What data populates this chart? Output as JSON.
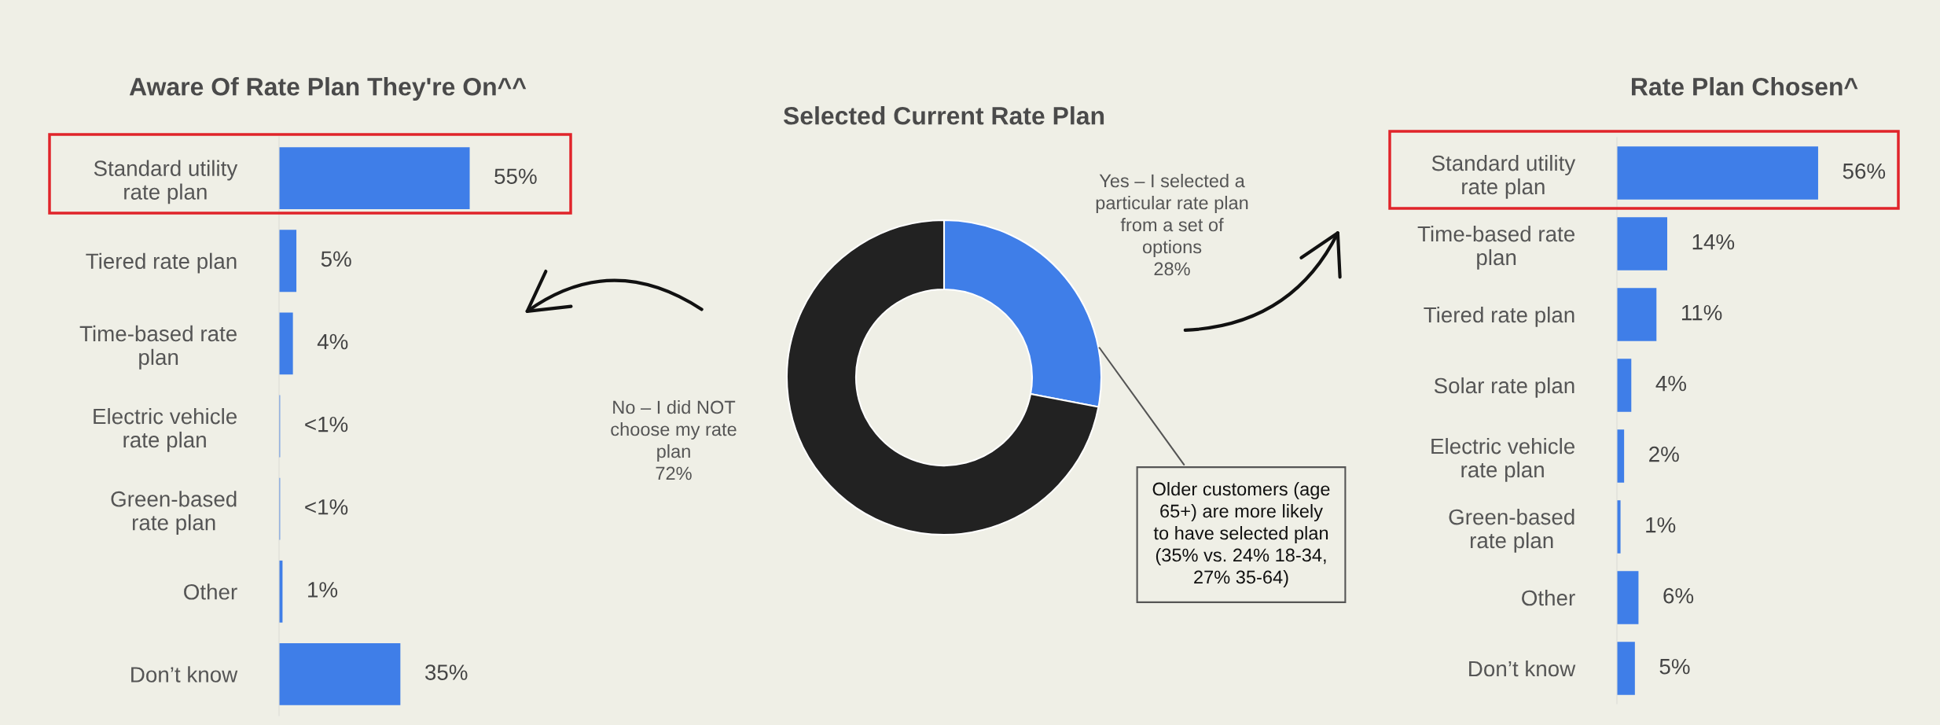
{
  "chart_data": [
    {
      "type": "bar",
      "orientation": "horizontal",
      "title": "Aware Of Rate Plan They're On^^",
      "categories": [
        "Standard utility\nrate plan",
        "Tiered rate plan",
        "Time-based rate\nplan",
        "Electric vehicle\nrate plan",
        "Green-based\nrate plan",
        "Other",
        "Don’t know"
      ],
      "values": [
        55,
        5,
        4,
        0.3,
        0.3,
        1,
        35
      ],
      "value_labels": [
        "55%",
        "5%",
        "4%",
        "<1%",
        "<1%",
        "1%",
        "35%"
      ],
      "color": "#3f7ee8",
      "grid": false,
      "legend": false
    },
    {
      "type": "donut",
      "title": "Selected Current Rate Plan",
      "categories": [
        "Yes – I selected a\nparticular rate plan\nfrom a set of\noptions",
        "No – I did NOT\nchoose my rate\nplan"
      ],
      "values": [
        28,
        72
      ],
      "value_labels": [
        "28%",
        "72%"
      ],
      "colors": [
        "#3f7ee8",
        "#222222"
      ],
      "annotations": [
        "Older customers (age\n65+) are more likely\nto have selected plan\n(35% vs. 24% 18-34,\n27% 35-64)"
      ],
      "legend": false
    },
    {
      "type": "bar",
      "orientation": "horizontal",
      "title": "Rate Plan Chosen^",
      "categories": [
        "Standard utility\nrate plan",
        "Time-based rate\nplan",
        "Tiered rate plan",
        "Solar rate plan",
        "Electric vehicle\nrate plan",
        "Green-based\nrate plan",
        "Other",
        "Don’t know"
      ],
      "values": [
        56,
        14,
        11,
        4,
        2,
        1,
        6,
        5
      ],
      "value_labels": [
        "56%",
        "14%",
        "11%",
        "4%",
        "2%",
        "1%",
        "6%",
        "5%"
      ],
      "color": "#3f7ee8",
      "grid": false,
      "legend": false
    }
  ]
}
